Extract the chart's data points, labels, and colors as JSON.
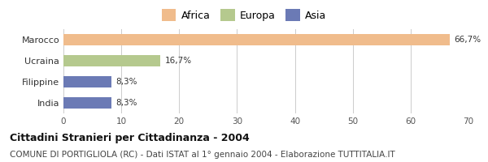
{
  "categories": [
    "Marocco",
    "Ucraina",
    "Filippine",
    "India"
  ],
  "values": [
    66.7,
    16.7,
    8.3,
    8.3
  ],
  "labels": [
    "66,7%",
    "16,7%",
    "8,3%",
    "8,3%"
  ],
  "colors": [
    "#f0bc8c",
    "#b5c98e",
    "#6b7ab5",
    "#6b7ab5"
  ],
  "legend": [
    {
      "label": "Africa",
      "color": "#f0bc8c"
    },
    {
      "label": "Europa",
      "color": "#b5c98e"
    },
    {
      "label": "Asia",
      "color": "#6b7ab5"
    }
  ],
  "xlim": [
    0,
    70
  ],
  "xticks": [
    0,
    10,
    20,
    30,
    40,
    50,
    60,
    70
  ],
  "title": "Cittadini Stranieri per Cittadinanza - 2004",
  "subtitle": "COMUNE DI PORTIGLIOLA (RC) - Dati ISTAT al 1° gennaio 2004 - Elaborazione TUTTITALIA.IT",
  "bar_height": 0.55,
  "background_color": "#ffffff"
}
